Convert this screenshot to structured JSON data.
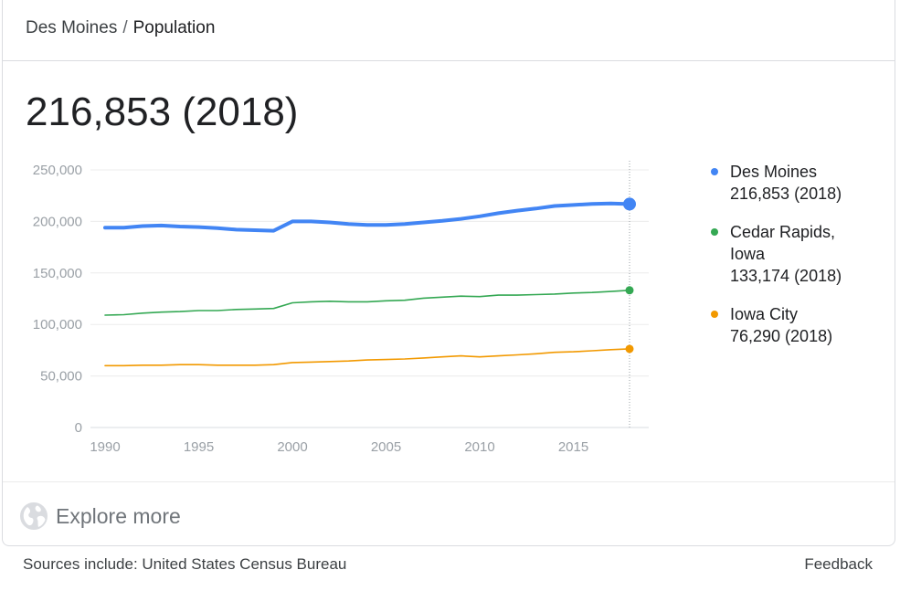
{
  "breadcrumb": {
    "parent": "Des Moines",
    "separator": "/",
    "current": "Population"
  },
  "headline": "216,853 (2018)",
  "explore": {
    "label": "Explore more",
    "icon": "globe-icon"
  },
  "footer": {
    "sources": "Sources include: United States Census Bureau",
    "feedback": "Feedback"
  },
  "chart_data": {
    "type": "line",
    "title": "",
    "xlabel": "",
    "ylabel": "",
    "xlim": [
      1990,
      2018
    ],
    "ylim": [
      0,
      250000
    ],
    "x_ticks": [
      1990,
      1995,
      2000,
      2005,
      2010,
      2015
    ],
    "x_tick_labels": [
      "1990",
      "1995",
      "2000",
      "2005",
      "2010",
      "2015"
    ],
    "y_ticks": [
      0,
      50000,
      100000,
      150000,
      200000,
      250000
    ],
    "y_tick_labels": [
      "0",
      "50,000",
      "100,000",
      "150,000",
      "200,000",
      "250,000"
    ],
    "grid": true,
    "legend_position": "right",
    "x": [
      1990,
      1991,
      1992,
      1993,
      1994,
      1995,
      1996,
      1997,
      1998,
      1999,
      2000,
      2001,
      2002,
      2003,
      2004,
      2005,
      2006,
      2007,
      2008,
      2009,
      2010,
      2011,
      2012,
      2013,
      2014,
      2015,
      2016,
      2017,
      2018
    ],
    "series": [
      {
        "name": "Des Moines",
        "value_label": "216,853 (2018)",
        "color": "#4285f4",
        "values": [
          194000,
          194000,
          195500,
          196000,
          195000,
          194500,
          193500,
          192000,
          191500,
          191000,
          200000,
          200000,
          199000,
          197500,
          196500,
          196500,
          197500,
          199000,
          200500,
          202500,
          205000,
          208000,
          210500,
          212500,
          215000,
          216000,
          217000,
          217500,
          216853
        ]
      },
      {
        "name": "Cedar Rapids, Iowa",
        "value_label": "133,174 (2018)",
        "color": "#34a853",
        "values": [
          109000,
          109500,
          111000,
          112000,
          112500,
          113500,
          113500,
          114500,
          115000,
          115500,
          121000,
          122000,
          122500,
          122000,
          122000,
          123000,
          123500,
          125500,
          126500,
          127500,
          127000,
          128500,
          128500,
          129000,
          129500,
          130500,
          131000,
          132000,
          133174
        ]
      },
      {
        "name": "Iowa City",
        "value_label": "76,290 (2018)",
        "color": "#f29900",
        "values": [
          60000,
          60000,
          60500,
          60500,
          61000,
          61000,
          60500,
          60500,
          60500,
          61000,
          63000,
          63500,
          64000,
          64500,
          65500,
          66000,
          66500,
          67500,
          68500,
          69500,
          68500,
          69500,
          70500,
          71500,
          73000,
          73500,
          74500,
          75500,
          76290
        ]
      }
    ]
  }
}
